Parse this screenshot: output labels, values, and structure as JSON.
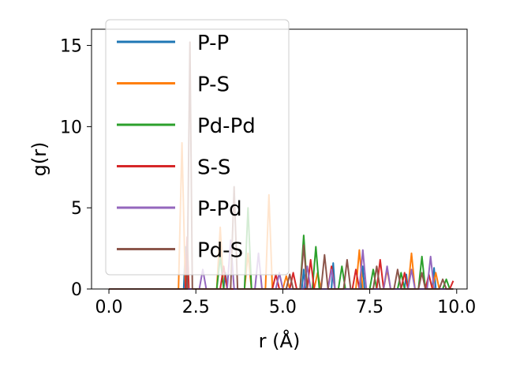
{
  "chart_data": {
    "type": "line",
    "title": "",
    "xlabel": "r (Å)",
    "ylabel": "g(r)",
    "xlim": [
      -0.5,
      10.3
    ],
    "ylim": [
      0,
      16
    ],
    "xticks": [
      0.0,
      2.5,
      5.0,
      7.5,
      10.0
    ],
    "xtick_labels": [
      "0.0",
      "2.5",
      "5.0",
      "7.5",
      "10.0"
    ],
    "yticks": [
      0,
      5,
      10,
      15
    ],
    "ytick_labels": [
      "0",
      "5",
      "10",
      "15"
    ],
    "grid": false,
    "legend_position": "upper-left",
    "series": [
      {
        "name": "P-P",
        "color": "#1f77b4",
        "points": [
          [
            0.0,
            0
          ],
          [
            2.15,
            0
          ],
          [
            2.2,
            2.6
          ],
          [
            2.25,
            0
          ],
          [
            3.3,
            0
          ],
          [
            3.35,
            1.0
          ],
          [
            3.4,
            0
          ],
          [
            5.55,
            0
          ],
          [
            5.6,
            1.2
          ],
          [
            5.65,
            0
          ],
          [
            6.4,
            0
          ],
          [
            6.45,
            1.6
          ],
          [
            6.5,
            0
          ],
          [
            7.25,
            0
          ],
          [
            7.3,
            1.4
          ],
          [
            7.35,
            0
          ],
          [
            8.5,
            0
          ],
          [
            8.55,
            0.9
          ],
          [
            8.6,
            0
          ],
          [
            9.3,
            0
          ],
          [
            9.35,
            1.3
          ],
          [
            9.4,
            0
          ],
          [
            9.9,
            0
          ]
        ]
      },
      {
        "name": "P-S",
        "color": "#ff7f0e",
        "points": [
          [
            0.0,
            0
          ],
          [
            2.0,
            0
          ],
          [
            2.1,
            9.0
          ],
          [
            2.2,
            0
          ],
          [
            3.1,
            0
          ],
          [
            3.2,
            3.8
          ],
          [
            3.3,
            0
          ],
          [
            3.9,
            0
          ],
          [
            4.0,
            2.2
          ],
          [
            4.1,
            0
          ],
          [
            4.5,
            0
          ],
          [
            4.6,
            5.8
          ],
          [
            4.7,
            0
          ],
          [
            5.0,
            0
          ],
          [
            5.1,
            0.8
          ],
          [
            5.2,
            0
          ],
          [
            5.9,
            0
          ],
          [
            6.0,
            1.0
          ],
          [
            6.1,
            0
          ],
          [
            7.1,
            0
          ],
          [
            7.2,
            2.4
          ],
          [
            7.3,
            0
          ],
          [
            7.9,
            0
          ],
          [
            8.0,
            1.2
          ],
          [
            8.1,
            0
          ],
          [
            8.6,
            0
          ],
          [
            8.7,
            2.2
          ],
          [
            8.8,
            0
          ],
          [
            9.3,
            0
          ],
          [
            9.4,
            1.0
          ],
          [
            9.5,
            0
          ],
          [
            9.9,
            0
          ]
        ]
      },
      {
        "name": "Pd-Pd",
        "color": "#2ca02c",
        "points": [
          [
            0.0,
            0
          ],
          [
            3.1,
            0
          ],
          [
            3.2,
            2.0
          ],
          [
            3.3,
            0
          ],
          [
            3.9,
            0
          ],
          [
            4.0,
            5.0
          ],
          [
            4.1,
            0
          ],
          [
            5.5,
            0
          ],
          [
            5.6,
            3.3
          ],
          [
            5.7,
            0
          ],
          [
            5.85,
            0
          ],
          [
            5.95,
            2.6
          ],
          [
            6.05,
            0
          ],
          [
            6.6,
            0
          ],
          [
            6.7,
            1.4
          ],
          [
            6.8,
            0
          ],
          [
            7.5,
            0
          ],
          [
            7.6,
            1.2
          ],
          [
            7.7,
            0
          ],
          [
            8.3,
            0
          ],
          [
            8.4,
            1.0
          ],
          [
            8.5,
            0
          ],
          [
            8.9,
            0
          ],
          [
            9.0,
            2.0
          ],
          [
            9.1,
            0
          ],
          [
            9.6,
            0
          ],
          [
            9.7,
            0.6
          ],
          [
            9.8,
            0
          ],
          [
            9.9,
            0
          ]
        ]
      },
      {
        "name": "S-S",
        "color": "#d62728",
        "points": [
          [
            0.0,
            0
          ],
          [
            2.2,
            0
          ],
          [
            2.25,
            3.2
          ],
          [
            2.3,
            0
          ],
          [
            3.2,
            0
          ],
          [
            3.3,
            1.4
          ],
          [
            3.4,
            0
          ],
          [
            4.7,
            0
          ],
          [
            4.8,
            0.9
          ],
          [
            4.9,
            0
          ],
          [
            5.2,
            0
          ],
          [
            5.3,
            1.0
          ],
          [
            5.4,
            0
          ],
          [
            5.7,
            0
          ],
          [
            5.8,
            1.8
          ],
          [
            5.9,
            0
          ],
          [
            6.3,
            0
          ],
          [
            6.4,
            1.4
          ],
          [
            6.5,
            0
          ],
          [
            7.0,
            0
          ],
          [
            7.1,
            1.2
          ],
          [
            7.2,
            0
          ],
          [
            7.7,
            0
          ],
          [
            7.8,
            1.8
          ],
          [
            7.9,
            0
          ],
          [
            8.4,
            0
          ],
          [
            8.5,
            1.0
          ],
          [
            8.6,
            0
          ],
          [
            9.1,
            0
          ],
          [
            9.2,
            0.9
          ],
          [
            9.3,
            0
          ],
          [
            9.8,
            0
          ],
          [
            9.9,
            0.5
          ]
        ]
      },
      {
        "name": "P-Pd",
        "color": "#9467bd",
        "points": [
          [
            0.0,
            0
          ],
          [
            2.6,
            0
          ],
          [
            2.7,
            1.2
          ],
          [
            2.8,
            0
          ],
          [
            3.4,
            0
          ],
          [
            3.5,
            3.0
          ],
          [
            3.6,
            0
          ],
          [
            4.2,
            0
          ],
          [
            4.3,
            2.2
          ],
          [
            4.4,
            0
          ],
          [
            4.8,
            0
          ],
          [
            4.9,
            1.0
          ],
          [
            5.0,
            0
          ],
          [
            5.6,
            0
          ],
          [
            5.7,
            1.4
          ],
          [
            5.8,
            0
          ],
          [
            6.3,
            0
          ],
          [
            6.4,
            1.2
          ],
          [
            6.5,
            0
          ],
          [
            7.2,
            0
          ],
          [
            7.3,
            2.4
          ],
          [
            7.4,
            0
          ],
          [
            7.9,
            0
          ],
          [
            8.0,
            1.4
          ],
          [
            8.1,
            0
          ],
          [
            8.6,
            0
          ],
          [
            8.7,
            1.2
          ],
          [
            8.8,
            0
          ],
          [
            9.15,
            0
          ],
          [
            9.25,
            2.0
          ],
          [
            9.35,
            0
          ],
          [
            9.9,
            0
          ]
        ]
      },
      {
        "name": "Pd-S",
        "color": "#8c564b",
        "points": [
          [
            0.0,
            0
          ],
          [
            2.25,
            0
          ],
          [
            2.33,
            15.2
          ],
          [
            2.4,
            0
          ],
          [
            3.5,
            0
          ],
          [
            3.6,
            6.3
          ],
          [
            3.7,
            0
          ],
          [
            5.1,
            0
          ],
          [
            5.2,
            0.9
          ],
          [
            5.3,
            0
          ],
          [
            5.5,
            0
          ],
          [
            5.6,
            2.7
          ],
          [
            5.7,
            0
          ],
          [
            6.1,
            0
          ],
          [
            6.2,
            2.1
          ],
          [
            6.3,
            0
          ],
          [
            6.75,
            0
          ],
          [
            6.85,
            1.8
          ],
          [
            6.95,
            0
          ],
          [
            7.6,
            0
          ],
          [
            7.7,
            1.4
          ],
          [
            7.8,
            0
          ],
          [
            8.2,
            0
          ],
          [
            8.3,
            1.2
          ],
          [
            8.4,
            0
          ],
          [
            8.9,
            0
          ],
          [
            9.0,
            1.0
          ],
          [
            9.1,
            0
          ],
          [
            9.5,
            0
          ],
          [
            9.6,
            0.6
          ],
          [
            9.7,
            0
          ],
          [
            9.9,
            0
          ]
        ]
      }
    ]
  }
}
